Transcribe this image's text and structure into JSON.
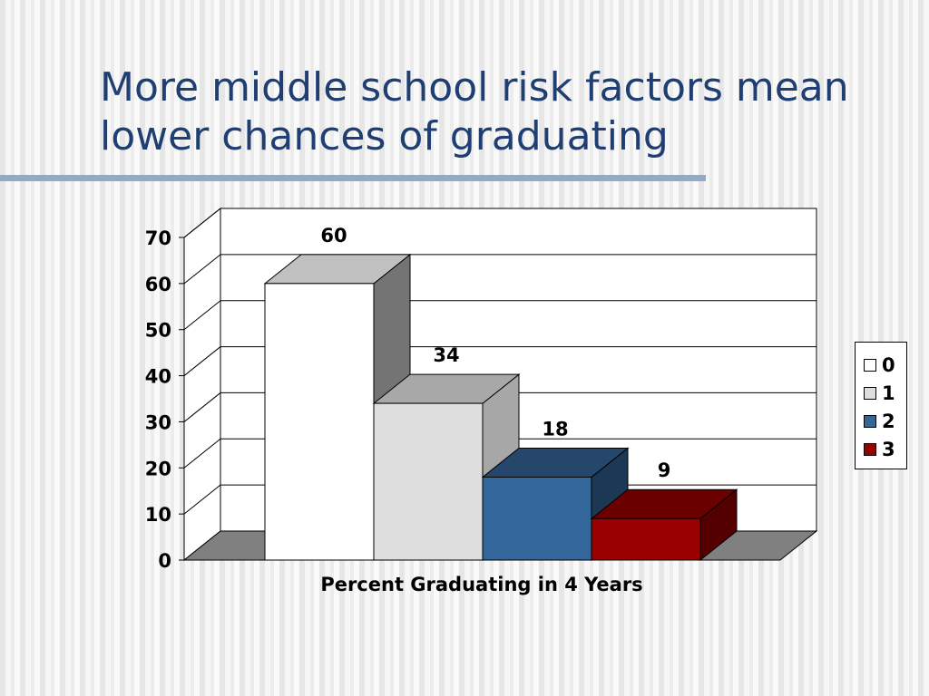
{
  "slide": {
    "title_line1": "More middle school risk factors mean",
    "title_line2": "lower chances of graduating"
  },
  "chart_data": {
    "type": "bar",
    "title": "",
    "xlabel": "Percent Graduating in 4 Years",
    "ylabel": "",
    "ylim": [
      0,
      70
    ],
    "yticks": [
      0,
      10,
      20,
      30,
      40,
      50,
      60,
      70
    ],
    "grid": true,
    "legend_position": "right",
    "series": [
      {
        "name": "0",
        "value": 60,
        "label": "60",
        "color": "#ffffff"
      },
      {
        "name": "1",
        "value": 34,
        "label": "34",
        "color": "#dedede"
      },
      {
        "name": "2",
        "value": 18,
        "label": "18",
        "color": "#336699"
      },
      {
        "name": "3",
        "value": 9,
        "label": "9",
        "color": "#990000"
      }
    ]
  },
  "colors": {
    "title": "#1f3f73",
    "title_rule": "#91aac8",
    "floor": "#808080",
    "axis": "#000000"
  }
}
